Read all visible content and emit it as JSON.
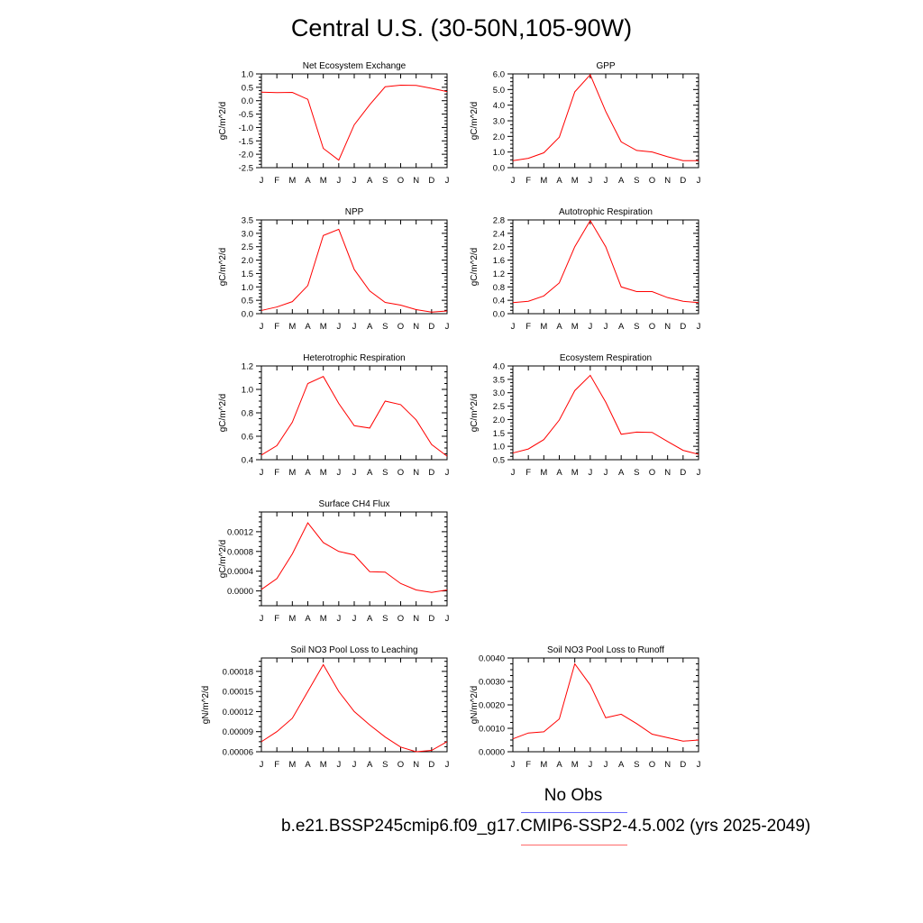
{
  "title": "Central U.S. (30-50N,105-90W)",
  "month_labels": [
    "J",
    "F",
    "M",
    "A",
    "M",
    "J",
    "J",
    "A",
    "S",
    "O",
    "N",
    "D",
    "J"
  ],
  "legend": {
    "obs_label": "No Obs",
    "obs_color": "#6a6aff",
    "model_label": "b.e21.BSSP245cmip6.f09_g17.CMIP6-SSP2-4.5.002 (yrs 2025-2049)",
    "model_color": "#ff6a6a"
  },
  "line_color": "#ff0000",
  "chart_data": [
    {
      "type": "line",
      "title": "Net Ecosystem Exchange",
      "ylabel": "gC/m^2/d",
      "ylim": [
        -2.5,
        1.0
      ],
      "yticks": [
        1.0,
        0.5,
        0.0,
        -0.5,
        -1.0,
        -1.5,
        -2.0,
        -2.5
      ],
      "ytick_labels": [
        "1.0",
        "0.5",
        "0.0",
        "-0.5",
        "-1.0",
        "-1.5",
        "-2.0",
        "-2.5"
      ],
      "values": [
        0.32,
        0.3,
        0.31,
        0.05,
        -1.78,
        -2.22,
        -0.9,
        -0.15,
        0.52,
        0.58,
        0.57,
        0.46,
        0.34
      ]
    },
    {
      "type": "line",
      "title": "GPP",
      "ylabel": "gC/m^2/d",
      "ylim": [
        0.0,
        6.0
      ],
      "yticks": [
        6.0,
        5.0,
        4.0,
        3.0,
        2.0,
        1.0,
        0.0
      ],
      "ytick_labels": [
        "6.0",
        "5.0",
        "4.0",
        "3.0",
        "2.0",
        "1.0",
        "0.0"
      ],
      "values": [
        0.45,
        0.6,
        0.95,
        1.95,
        4.85,
        5.95,
        3.6,
        1.65,
        1.1,
        1.0,
        0.7,
        0.45,
        0.45
      ]
    },
    {
      "type": "line",
      "title": "NPP",
      "ylabel": "gC/m^2/d",
      "ylim": [
        0.0,
        3.5
      ],
      "yticks": [
        3.5,
        3.0,
        2.5,
        2.0,
        1.5,
        1.0,
        0.5,
        0.0
      ],
      "ytick_labels": [
        "3.5",
        "3.0",
        "2.5",
        "2.0",
        "1.5",
        "1.0",
        "0.5",
        "0.0"
      ],
      "values": [
        0.12,
        0.25,
        0.45,
        1.05,
        2.92,
        3.15,
        1.65,
        0.85,
        0.42,
        0.32,
        0.15,
        0.06,
        0.1
      ]
    },
    {
      "type": "line",
      "title": "Autotrophic Respiration",
      "ylabel": "gC/m^2/d",
      "ylim": [
        0.0,
        2.8
      ],
      "yticks": [
        2.8,
        2.4,
        2.0,
        1.6,
        1.2,
        0.8,
        0.4,
        0.0
      ],
      "ytick_labels": [
        "2.8",
        "2.4",
        "2.0",
        "1.6",
        "1.2",
        "0.8",
        "0.4",
        "0.0"
      ],
      "values": [
        0.33,
        0.37,
        0.53,
        0.92,
        2.0,
        2.78,
        2.0,
        0.8,
        0.66,
        0.66,
        0.48,
        0.37,
        0.33
      ]
    },
    {
      "type": "line",
      "title": "Heterotrophic Respiration",
      "ylabel": "gC/m^2/d",
      "ylim": [
        0.4,
        1.2
      ],
      "yticks": [
        1.2,
        1.0,
        0.8,
        0.6,
        0.4
      ],
      "ytick_labels": [
        "1.2",
        "1.0",
        "0.8",
        "0.6",
        "0.4"
      ],
      "values": [
        0.44,
        0.52,
        0.72,
        1.05,
        1.11,
        0.88,
        0.69,
        0.67,
        0.9,
        0.87,
        0.74,
        0.53,
        0.43
      ]
    },
    {
      "type": "line",
      "title": "Ecosystem Respiration",
      "ylabel": "gC/m^2/d",
      "ylim": [
        0.5,
        4.0
      ],
      "yticks": [
        4.0,
        3.5,
        3.0,
        2.5,
        2.0,
        1.5,
        1.0,
        0.5
      ],
      "ytick_labels": [
        "4.0",
        "3.5",
        "3.0",
        "2.5",
        "2.0",
        "1.5",
        "1.0",
        "0.5"
      ],
      "values": [
        0.75,
        0.9,
        1.25,
        1.98,
        3.08,
        3.65,
        2.65,
        1.45,
        1.53,
        1.52,
        1.18,
        0.85,
        0.7
      ]
    },
    {
      "type": "line",
      "title": "Surface CH4 Flux",
      "ylabel": "gC/m^2/d",
      "ylim": [
        -0.0003,
        0.0016
      ],
      "yticks": [
        0.0012,
        0.0008,
        0.0004,
        0.0
      ],
      "ytick_labels": [
        "0.0012",
        "0.0008",
        "0.0004",
        "0.0000"
      ],
      "values": [
        3e-05,
        0.00025,
        0.00075,
        0.00138,
        0.00098,
        0.0008,
        0.00073,
        0.00039,
        0.00038,
        0.00015,
        2e-05,
        -3e-05,
        2e-05
      ]
    },
    {
      "type": "line",
      "title": "Soil NO3 Pool Loss to Leaching",
      "ylabel": "gN/m^2/d",
      "ylim": [
        6e-05,
        0.0002
      ],
      "yticks": [
        0.00018,
        0.00015,
        0.00012,
        9e-05,
        6e-05
      ],
      "ytick_labels": [
        "0.00018",
        "0.00015",
        "0.00012",
        "0.00009",
        "0.00006"
      ],
      "values": [
        7.5e-05,
        9e-05,
        0.00011,
        0.00015,
        0.00019,
        0.00015,
        0.00012,
        0.0001,
        8.2e-05,
        6.7e-05,
        6e-05,
        6.2e-05,
        7.5e-05
      ]
    },
    {
      "type": "line",
      "title": "Soil NO3 Pool Loss to Runoff",
      "ylabel": "gN/m^2/d",
      "ylim": [
        0.0,
        0.004
      ],
      "yticks": [
        0.004,
        0.003,
        0.002,
        0.001,
        0.0
      ],
      "ytick_labels": [
        "0.0040",
        "0.0030",
        "0.0020",
        "0.0010",
        "0.0000"
      ],
      "values": [
        0.00055,
        0.0008,
        0.00085,
        0.0014,
        0.00375,
        0.00285,
        0.00145,
        0.0016,
        0.0012,
        0.00075,
        0.0006,
        0.00045,
        0.0005
      ]
    }
  ]
}
